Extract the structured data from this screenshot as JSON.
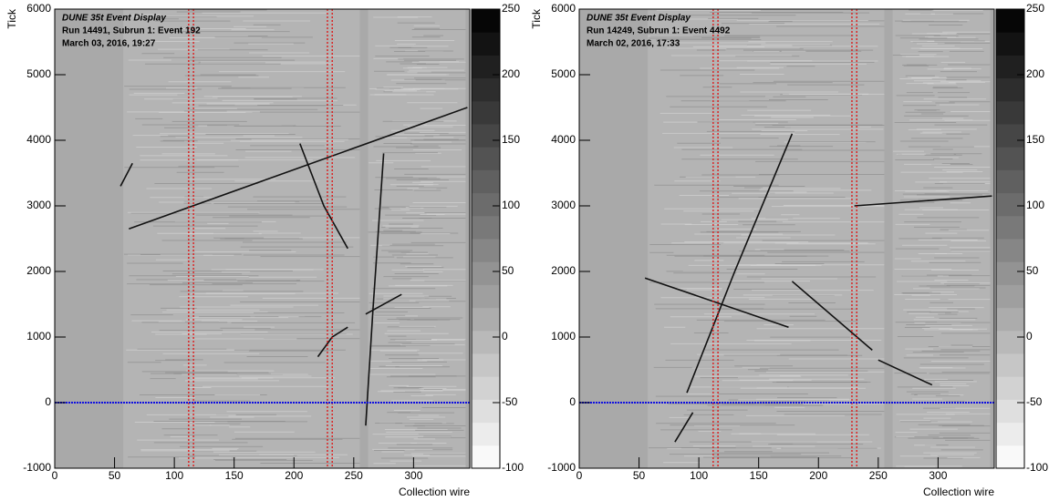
{
  "chart_data": [
    {
      "type": "line",
      "title": "DUNE 35t Event Display",
      "subtitle": [
        "Run 14491, Subrun 1: Event 192",
        "March 03, 2016, 19:27"
      ],
      "x_label": "Collection wire",
      "y_label": "Tick",
      "xlim": [
        0,
        347
      ],
      "xticks": [
        0,
        50,
        100,
        150,
        200,
        250,
        300
      ],
      "ylim": [
        -1000,
        6000
      ],
      "yticks": [
        -1000,
        0,
        1000,
        2000,
        3000,
        4000,
        5000,
        6000
      ],
      "zlim": [
        -100,
        250
      ],
      "zticks": [
        -100,
        -50,
        0,
        50,
        100,
        150,
        200,
        250
      ],
      "colormap": [
        "#ffffff",
        "#000000"
      ],
      "vlines": {
        "values": [
          112,
          116,
          228,
          232
        ],
        "color": "#e01010"
      },
      "hlines": {
        "values": [
          0
        ],
        "color": "#1010e0"
      },
      "series": [
        {
          "color": "#111111",
          "x": [
            55,
            65
          ],
          "values": [
            3300,
            3650
          ]
        },
        {
          "color": "#111111",
          "x": [
            62,
            345
          ],
          "values": [
            2650,
            4500
          ]
        },
        {
          "color": "#111111",
          "x": [
            205,
            225,
            245
          ],
          "values": [
            3950,
            3000,
            2350
          ]
        },
        {
          "color": "#111111",
          "x": [
            220,
            232,
            245
          ],
          "values": [
            700,
            1000,
            1150
          ]
        },
        {
          "color": "#111111",
          "x": [
            260,
            266,
            275
          ],
          "values": [
            -350,
            1400,
            3800
          ]
        },
        {
          "color": "#111111",
          "x": [
            260,
            290
          ],
          "values": [
            1350,
            1650
          ]
        }
      ]
    },
    {
      "type": "line",
      "title": "DUNE 35t Event Display",
      "subtitle": [
        "Run 14249, Subrun 1: Event 4492",
        "March 02, 2016, 17:33"
      ],
      "x_label": "Collection wire",
      "y_label": "Tick",
      "xlim": [
        0,
        347
      ],
      "xticks": [
        0,
        50,
        100,
        150,
        200,
        250,
        300
      ],
      "ylim": [
        -1000,
        6000
      ],
      "yticks": [
        -1000,
        0,
        1000,
        2000,
        3000,
        4000,
        5000,
        6000
      ],
      "zlim": [
        -100,
        250
      ],
      "zticks": [
        -100,
        -50,
        0,
        50,
        100,
        150,
        200,
        250
      ],
      "colormap": [
        "#ffffff",
        "#000000"
      ],
      "vlines": {
        "values": [
          112,
          116,
          228,
          232
        ],
        "color": "#e01010"
      },
      "hlines": {
        "values": [
          0
        ],
        "color": "#1010e0"
      },
      "series": [
        {
          "color": "#111111",
          "x": [
            80,
            95
          ],
          "values": [
            -600,
            -150
          ]
        },
        {
          "color": "#111111",
          "x": [
            90,
            130,
            178
          ],
          "values": [
            150,
            2000,
            4100
          ]
        },
        {
          "color": "#111111",
          "x": [
            55,
            175
          ],
          "values": [
            1900,
            1150
          ]
        },
        {
          "color": "#111111",
          "x": [
            178,
            245
          ],
          "values": [
            1850,
            800
          ]
        },
        {
          "color": "#111111",
          "x": [
            250,
            295
          ],
          "values": [
            650,
            270
          ]
        },
        {
          "color": "#111111",
          "x": [
            230,
            345
          ],
          "values": [
            3000,
            3150
          ]
        }
      ]
    }
  ]
}
